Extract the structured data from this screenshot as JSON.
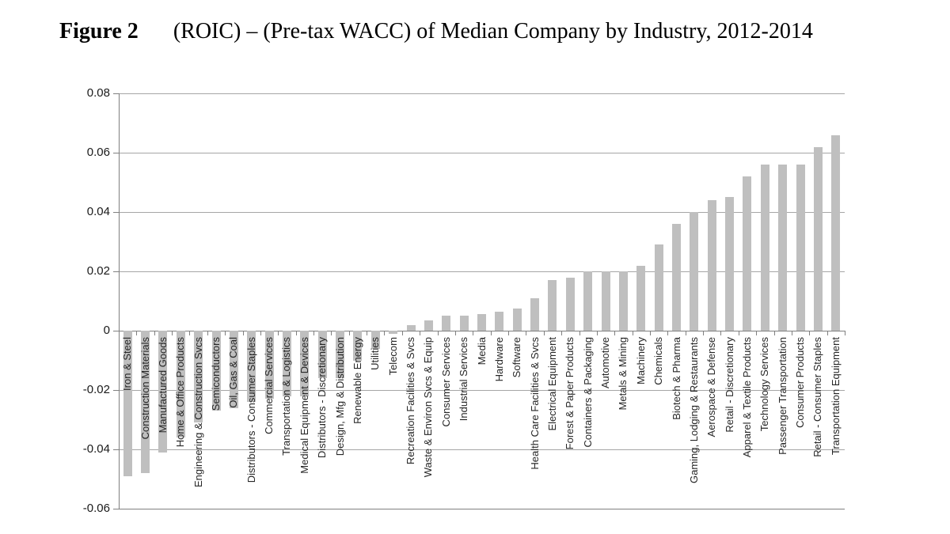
{
  "figure": {
    "label": "Figure 2",
    "title": "(ROIC) – (Pre-tax WACC) of Median Company by Industry, 2012-2014"
  },
  "chart_data": {
    "type": "bar",
    "title": "(ROIC) – (Pre-tax WACC) of Median Company by Industry, 2012-2014",
    "xlabel": "",
    "ylabel": "",
    "ylim": [
      -0.06,
      0.08
    ],
    "ytick_interval": 0.02,
    "yticks": [
      0.08,
      0.06,
      0.04,
      0.02,
      0,
      -0.02,
      -0.04,
      -0.06
    ],
    "ytick_labels": [
      "0.08",
      "0.06",
      "0.04",
      "0.02",
      "0",
      "-0.02",
      "-0.04",
      "-0.06"
    ],
    "grid": true,
    "legend_position": "none",
    "bar_color": "#BFBFBF",
    "gridline_color": "#A6A6A6",
    "categories": [
      "Iron & Steel",
      "Construction Materials",
      "Manufactured Goods",
      "Home & Office Products",
      "Engineering & Construction Svcs",
      "Semiconductors",
      "Oil, Gas & Coal",
      "Distributors - Consumer Staples",
      "Commercial Services",
      "Transportation & Logistics",
      "Medical Equipment & Devices",
      "Distributors - Discretionary",
      "Design, Mfg & Distribution",
      "Renewable Energy",
      "Utilities",
      "Telecom",
      "Recreation Facilities & Svcs",
      "Waste & Environ Svcs & Equip",
      "Consumer Services",
      "Industrial Services",
      "Media",
      "Hardware",
      "Software",
      "Health Care Facilities & Svcs",
      "Electrical Equipment",
      "Forest & Paper Products",
      "Containers & Packaging",
      "Automotive",
      "Metals & Mining",
      "Machinery",
      "Chemicals",
      "Biotech & Pharma",
      "Gaming, Lodging & Restaurants",
      "Aerospace & Defense",
      "Retail - Discretionary",
      "Apparel & Textile Products",
      "Technology Services",
      "Passenger Transportation",
      "Consumer Products",
      "Retail - Consumer Staples",
      "Transportation Equipment"
    ],
    "values": [
      -0.049,
      -0.048,
      -0.041,
      -0.036,
      -0.031,
      -0.027,
      -0.026,
      -0.024,
      -0.023,
      -0.022,
      -0.022,
      -0.016,
      -0.016,
      -0.01,
      -0.006,
      -0.001,
      0.002,
      0.0035,
      0.005,
      0.005,
      0.0055,
      0.0065,
      0.0075,
      0.011,
      0.017,
      0.018,
      0.02,
      0.02,
      0.02,
      0.022,
      0.029,
      0.036,
      0.04,
      0.044,
      0.045,
      0.052,
      0.056,
      0.056,
      0.056,
      0.062,
      0.066
    ]
  }
}
